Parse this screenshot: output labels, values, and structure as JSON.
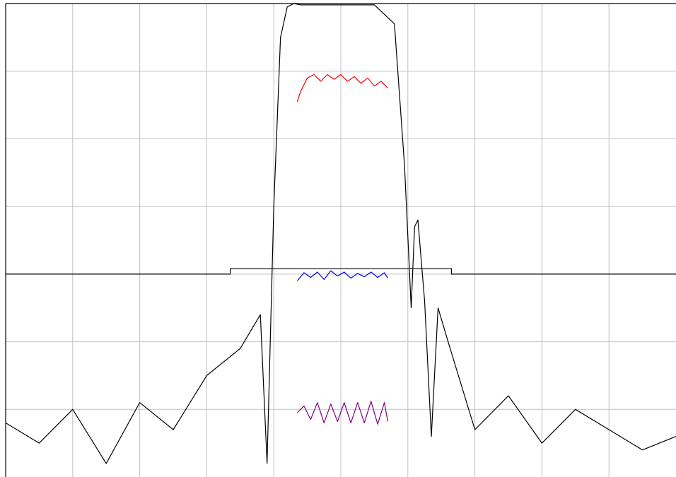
{
  "colors": {
    "background": "#ffffff",
    "grid": "#c0c0c0",
    "frame": "#000000",
    "response": "#000000",
    "mask": "#000000",
    "ripple_red": "#ff0000",
    "ripple_blue": "#0000ff",
    "ripple_purple": "#800080"
  },
  "chart_data": {
    "type": "line",
    "title": "",
    "xlabel": "",
    "ylabel": "",
    "grid": true,
    "legend": "none",
    "xlim": [
      0,
      10
    ],
    "ylim": [
      -7,
      0
    ],
    "x_divisions": 10,
    "y_divisions": 7,
    "series": [
      {
        "key": "response",
        "x": [
          0.0,
          0.5,
          1.0,
          1.5,
          2.0,
          2.5,
          3.0,
          3.5,
          3.8,
          3.9,
          4.0,
          4.1,
          4.2,
          4.3,
          4.4,
          5.0,
          5.5,
          5.8,
          5.95,
          6.05,
          6.1,
          6.15,
          6.25,
          6.35,
          6.45,
          6.6,
          7.0,
          7.5,
          8.0,
          8.5,
          9.0,
          9.5,
          10.0
        ],
        "y": [
          -6.2,
          -6.5,
          -6.0,
          -6.8,
          -5.9,
          -6.3,
          -5.5,
          -5.1,
          -4.6,
          -6.8,
          -3.0,
          -0.5,
          -0.05,
          0.0,
          -0.02,
          -0.02,
          -0.02,
          -0.3,
          -2.4,
          -4.5,
          -3.3,
          -3.2,
          -4.4,
          -6.4,
          -4.5,
          -5.0,
          -6.3,
          -5.8,
          -6.5,
          -6.0,
          -6.3,
          -6.6,
          -6.4
        ]
      },
      {
        "key": "mask",
        "x": [
          0.0,
          3.35,
          3.35,
          6.65,
          6.65,
          10.0
        ],
        "y": [
          -4.0,
          -4.0,
          -3.92,
          -3.92,
          -4.0,
          -4.0
        ]
      },
      {
        "key": "ripple_red",
        "x": [
          4.35,
          4.4,
          4.5,
          4.6,
          4.7,
          4.8,
          4.9,
          5.0,
          5.1,
          5.2,
          5.3,
          5.4,
          5.5,
          5.6,
          5.7
        ],
        "y": [
          -1.45,
          -1.3,
          -1.1,
          -1.05,
          -1.15,
          -1.05,
          -1.12,
          -1.05,
          -1.15,
          -1.08,
          -1.18,
          -1.1,
          -1.22,
          -1.15,
          -1.25
        ]
      },
      {
        "key": "ripple_blue",
        "x": [
          4.35,
          4.45,
          4.55,
          4.65,
          4.75,
          4.85,
          4.95,
          5.05,
          5.15,
          5.25,
          5.35,
          5.45,
          5.55,
          5.65,
          5.7
        ],
        "y": [
          -4.1,
          -3.98,
          -4.05,
          -3.97,
          -4.08,
          -3.95,
          -4.03,
          -3.97,
          -4.06,
          -3.99,
          -4.04,
          -3.97,
          -4.05,
          -3.98,
          -4.06
        ]
      },
      {
        "key": "ripple_purple",
        "x": [
          4.35,
          4.45,
          4.55,
          4.65,
          4.75,
          4.85,
          4.95,
          5.05,
          5.15,
          5.25,
          5.35,
          5.45,
          5.55,
          5.65,
          5.7
        ],
        "y": [
          -6.05,
          -5.95,
          -6.15,
          -5.9,
          -6.2,
          -5.92,
          -6.18,
          -5.9,
          -6.2,
          -5.9,
          -6.2,
          -5.88,
          -6.22,
          -5.9,
          -6.18
        ]
      }
    ]
  }
}
